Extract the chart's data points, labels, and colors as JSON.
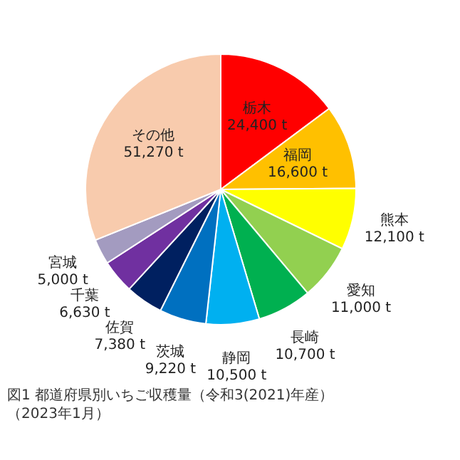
{
  "chart_data": {
    "type": "pie",
    "categories": [
      "栃木",
      "福岡",
      "熊本",
      "愛知",
      "長崎",
      "静岡",
      "茨城",
      "佐賀",
      "千葉",
      "宮城",
      "その他"
    ],
    "values": [
      24400,
      16600,
      12100,
      11000,
      10700,
      10500,
      9220,
      7380,
      6630,
      5000,
      51270
    ],
    "colors": [
      "#ff0000",
      "#ffc000",
      "#ffff00",
      "#92d050",
      "#00b050",
      "#00b0f0",
      "#0070c0",
      "#002060",
      "#7030a0",
      "#a39bc0",
      "#f8cbad"
    ],
    "value_labels": [
      "24,400 t",
      "16,600 t",
      "12,100 t",
      "11,000 t",
      "10,700 t",
      "10,500 t",
      "9,220 t",
      "7,380 t",
      "6,630 t",
      "5,000 t",
      "51,270 t"
    ],
    "annotations": [
      "図1 都道府県別いちご収穫量（令和3(2021)年産）",
      "（2023年1月）"
    ],
    "legend": false
  }
}
